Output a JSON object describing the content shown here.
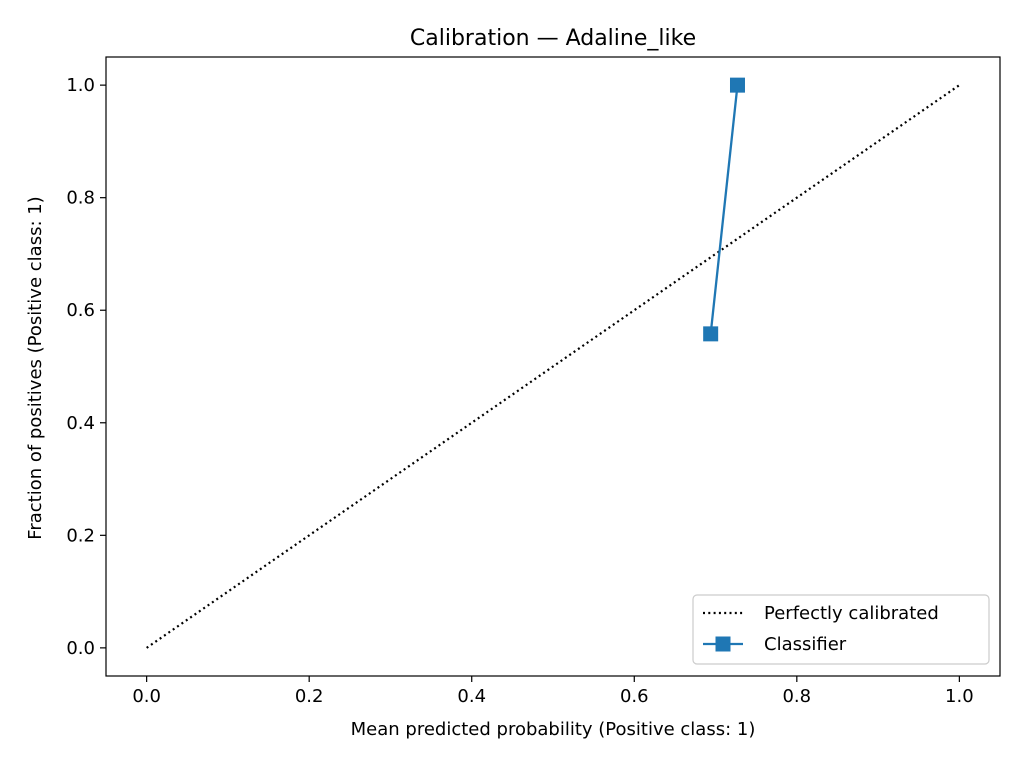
{
  "chart_data": {
    "type": "line",
    "title": "Calibration — Adaline_like",
    "xlabel": "Mean predicted probability (Positive class: 1)",
    "ylabel": "Fraction of positives (Positive class: 1)",
    "xlim": [
      -0.05,
      1.05
    ],
    "ylim": [
      -0.05,
      1.05
    ],
    "xticks": [
      0.0,
      0.2,
      0.4,
      0.6,
      0.8,
      1.0
    ],
    "yticks": [
      0.0,
      0.2,
      0.4,
      0.6,
      0.8,
      1.0
    ],
    "xtick_labels": [
      "0.0",
      "0.2",
      "0.4",
      "0.6",
      "0.8",
      "1.0"
    ],
    "ytick_labels": [
      "0.0",
      "0.2",
      "0.4",
      "0.6",
      "0.8",
      "1.0"
    ],
    "grid": false,
    "legend_position": "lower-right",
    "series": [
      {
        "name": "Perfectly calibrated",
        "style": "dotted",
        "marker": "none",
        "color": "#000000",
        "x": [
          0.0,
          1.0
        ],
        "y": [
          0.0,
          1.0
        ]
      },
      {
        "name": "Classifier",
        "style": "solid",
        "marker": "square",
        "color": "#1f77b4",
        "x": [
          0.694,
          0.727
        ],
        "y": [
          0.558,
          1.0
        ]
      }
    ]
  }
}
